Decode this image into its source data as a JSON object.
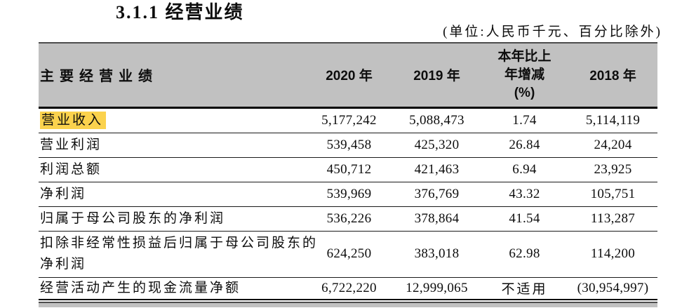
{
  "theme": {
    "header_bg": "#c1c1c1",
    "highlight": "#fbd24d"
  },
  "page": {
    "title": "3.1.1 经营业绩",
    "unit_note": "(单位:人民币千元、百分比除外)"
  },
  "table": {
    "header": {
      "metric": "主要经营业绩",
      "y2020": "2020 年",
      "y2019": "2019 年",
      "change": "本年比上\n年增减\n(%)",
      "y2018": "2018 年"
    },
    "rows": [
      {
        "label": "营业收入",
        "highlighted": true,
        "v2020": "5,177,242",
        "v2019": "5,088,473",
        "change": "1.74",
        "v2018": "5,114,119"
      },
      {
        "label": "营业利润",
        "v2020": "539,458",
        "v2019": "425,320",
        "change": "26.84",
        "v2018": "24,204"
      },
      {
        "label": "利润总额",
        "v2020": "450,712",
        "v2019": "421,463",
        "change": "6.94",
        "v2018": "23,925"
      },
      {
        "label": "净利润",
        "v2020": "539,969",
        "v2019": "376,769",
        "change": "43.32",
        "v2018": "105,751"
      },
      {
        "label": "归属于母公司股东的净利润",
        "v2020": "536,226",
        "v2019": "378,864",
        "change": "41.54",
        "v2018": "113,287"
      },
      {
        "label": "扣除非经常性损益后归属于母公司股东的\n净利润",
        "v2020": "624,250",
        "v2019": "383,018",
        "change": "62.98",
        "v2018": "114,200"
      },
      {
        "label": "经营活动产生的现金流量净额",
        "v2020": "6,722,220",
        "v2019": "12,999,065",
        "change": "不适用",
        "v2018": "(30,954,997)"
      }
    ]
  }
}
